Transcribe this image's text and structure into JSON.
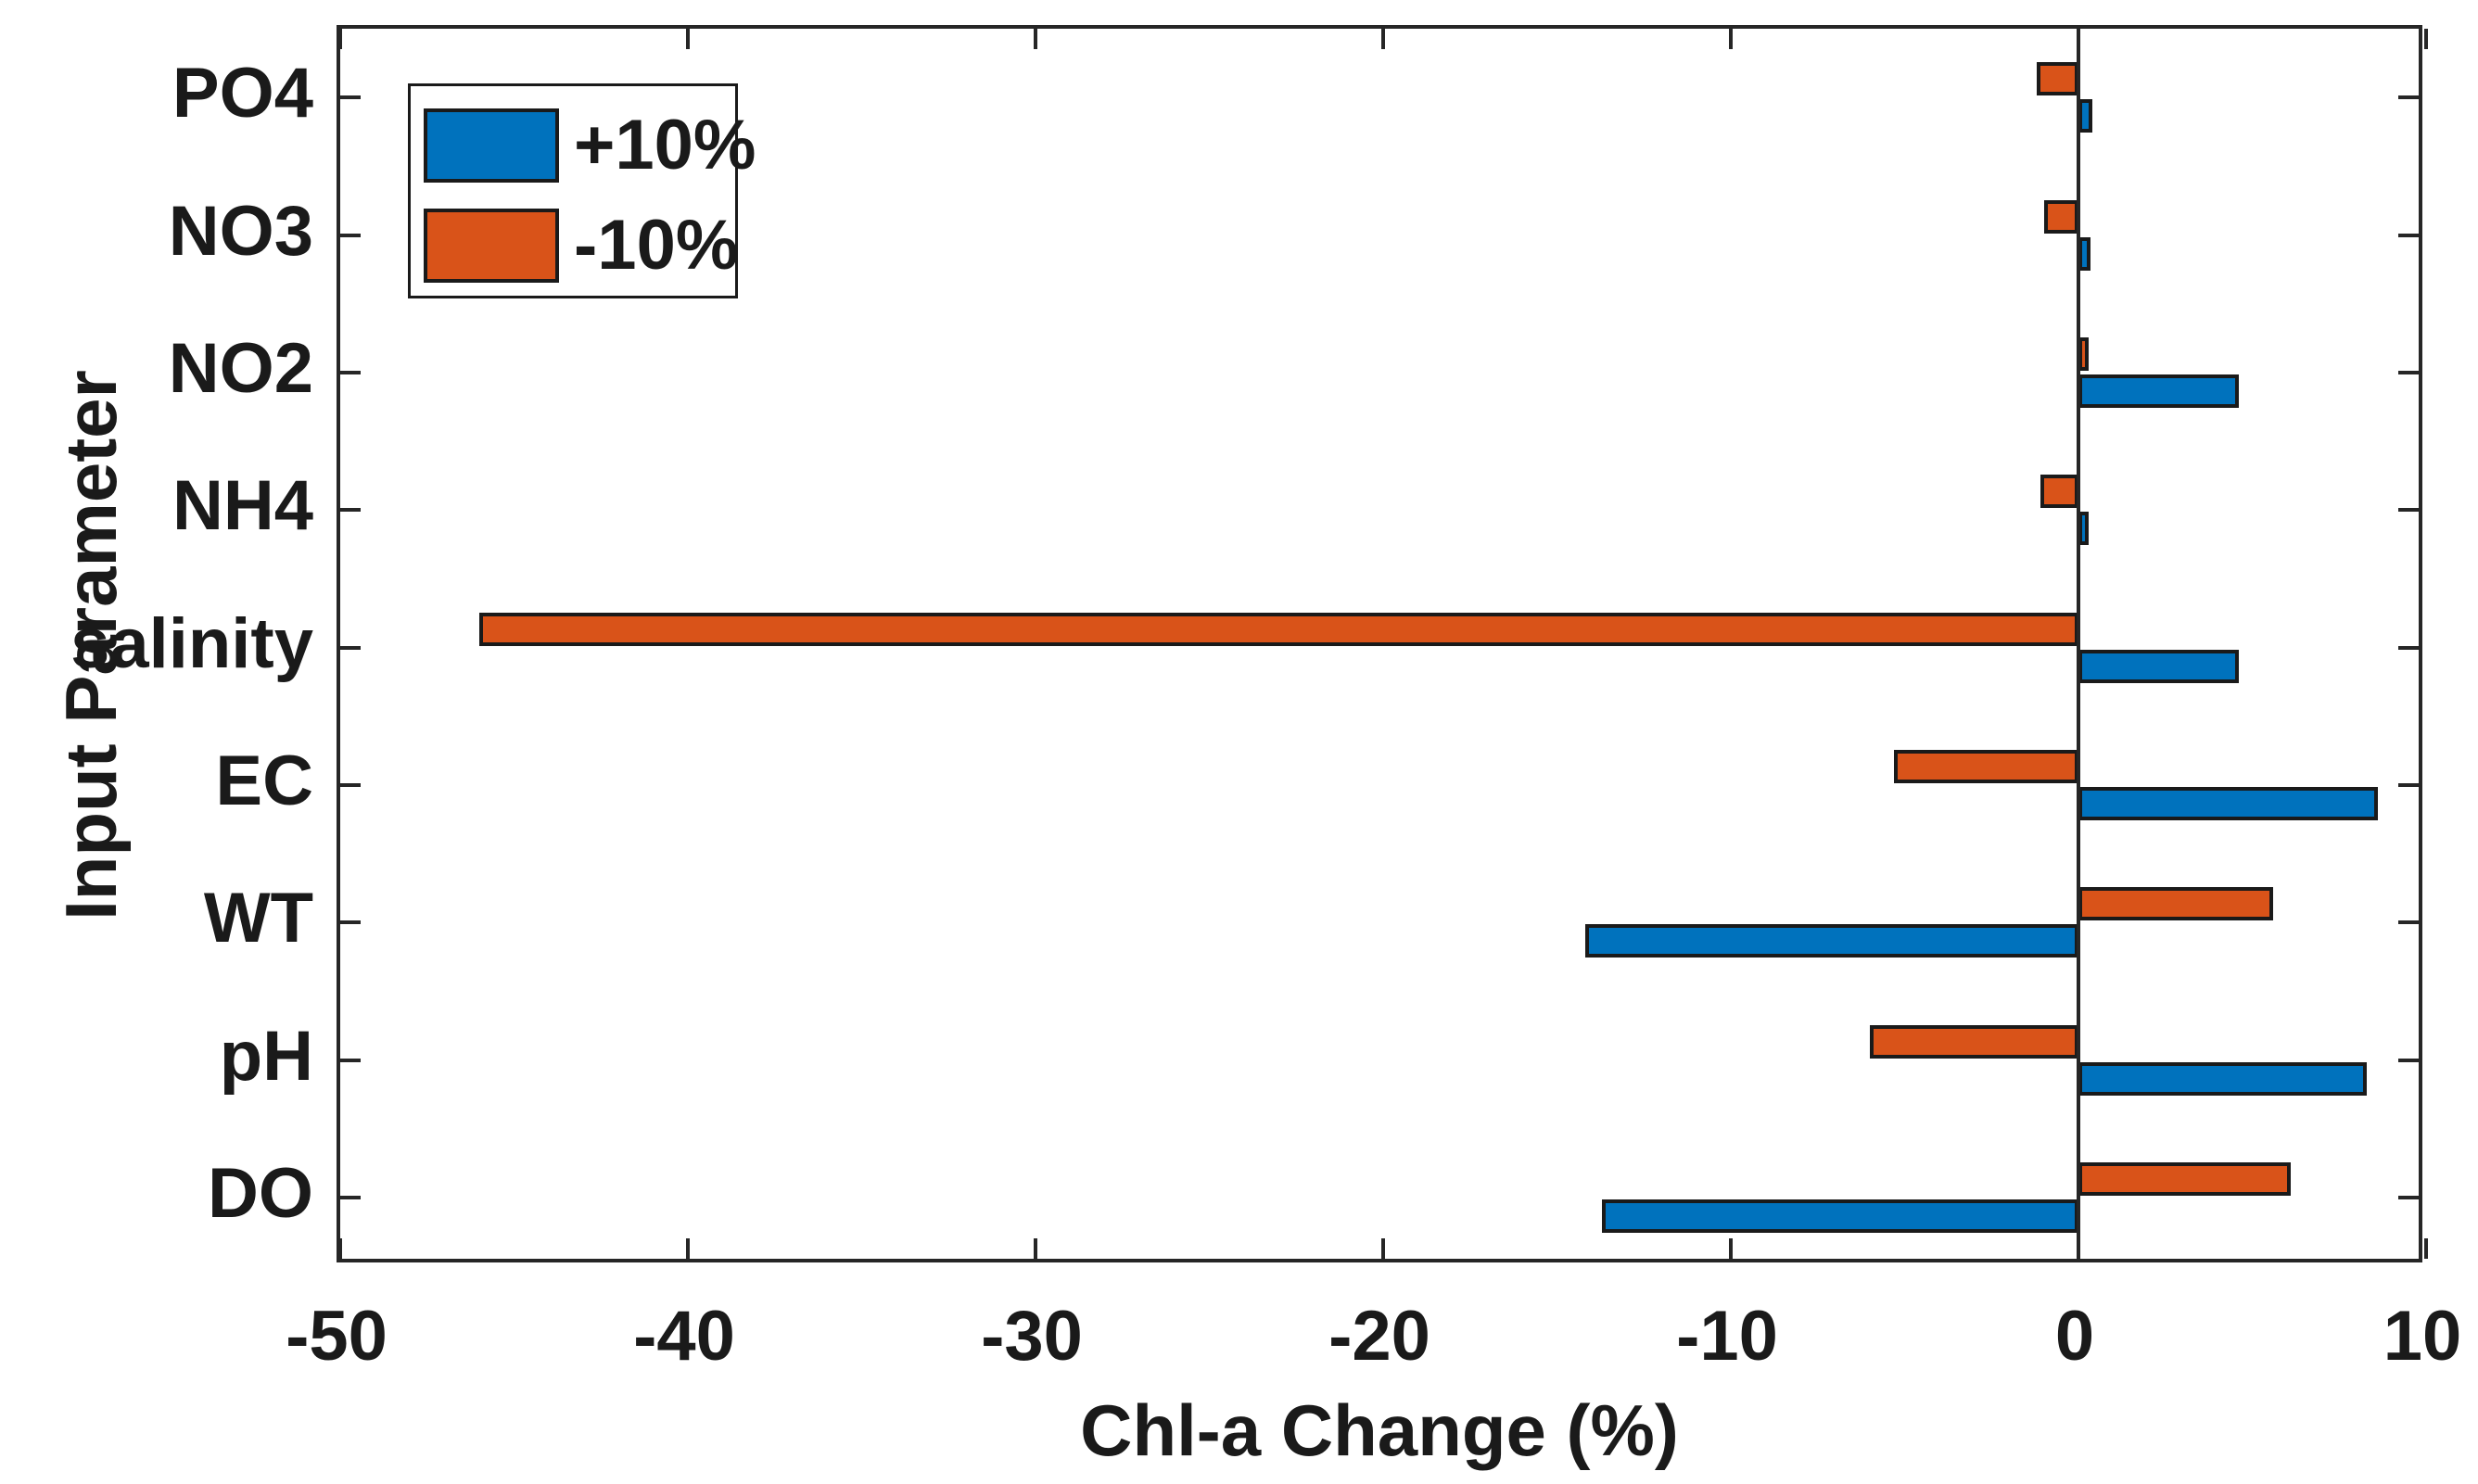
{
  "figure": {
    "background": "#ffffff",
    "axes_color": "#262626",
    "text_color": "#1a1a1a"
  },
  "chart_data": {
    "type": "bar",
    "orientation": "horizontal",
    "title": "",
    "xlabel": "Chl-a Change (%)",
    "ylabel": "Input Parameter",
    "xlim": [
      -50,
      10
    ],
    "xticks": [
      -50,
      -40,
      -30,
      -20,
      -10,
      0,
      10
    ],
    "grid": false,
    "zero_line": true,
    "legend_position": "top-left-inside",
    "bar_edge_color": "#1a1a1a",
    "categories": [
      "PO4",
      "NO3",
      "NO2",
      "NH4",
      "salinity",
      "EC",
      "WT",
      "pH",
      "DO"
    ],
    "series": [
      {
        "name": "+10%",
        "color": "#0072BD",
        "values": [
          0.4,
          0.35,
          4.6,
          0.3,
          4.6,
          8.6,
          -14.2,
          8.3,
          -13.7
        ]
      },
      {
        "name": "-10%",
        "color": "#D95319",
        "values": [
          -1.2,
          -1.0,
          0.3,
          -1.1,
          -46.0,
          -5.3,
          5.6,
          -6.0,
          6.1
        ]
      }
    ]
  },
  "legend": {
    "items": [
      {
        "label": "+10%",
        "color": "#0072BD"
      },
      {
        "label": "-10%",
        "color": "#D95319"
      }
    ]
  }
}
